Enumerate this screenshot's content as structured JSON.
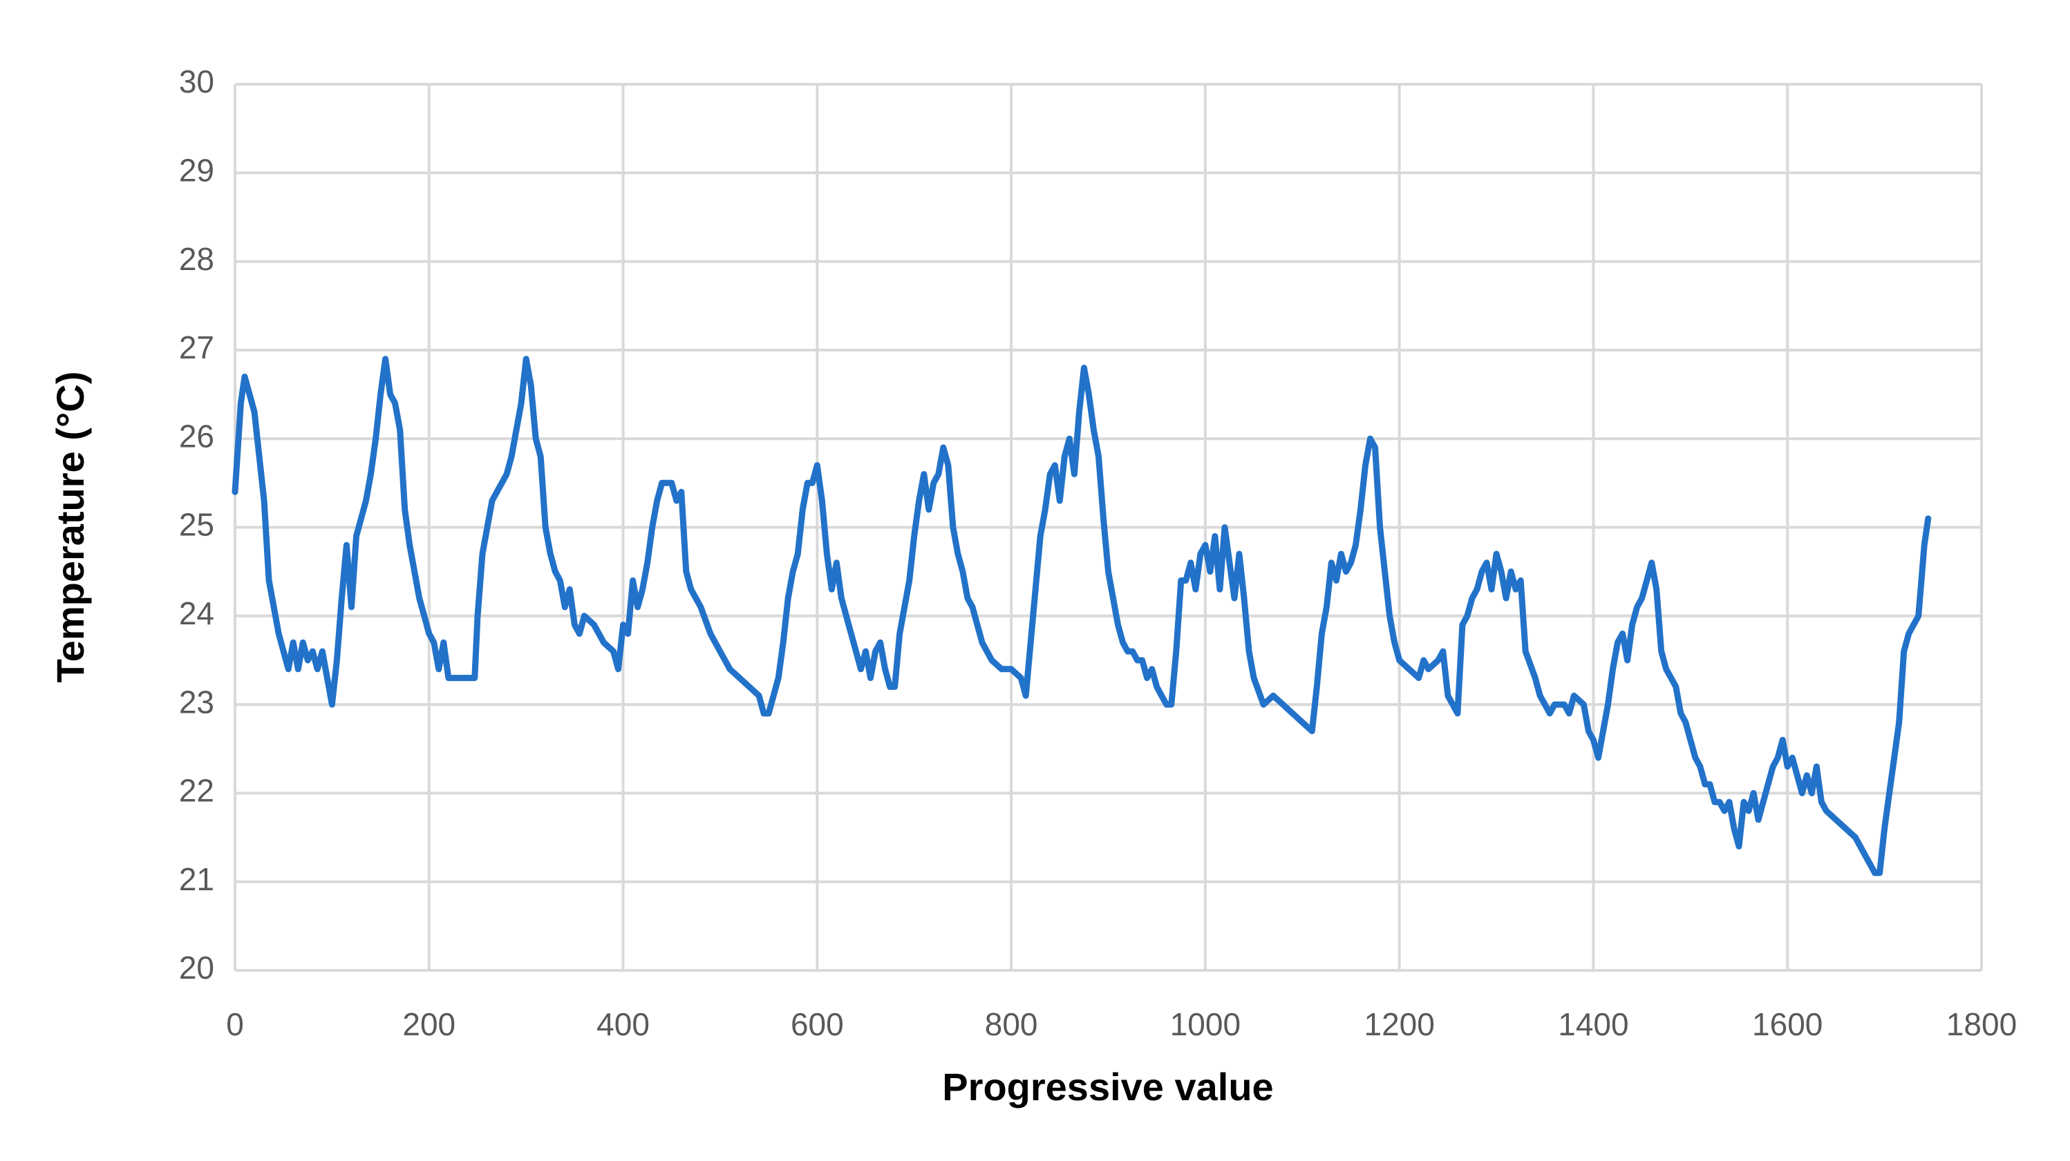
{
  "chart_data": {
    "type": "line",
    "x_label": "Progressive value",
    "y_label": "Temperature (°C)",
    "color": "#2272c9",
    "grid": true,
    "xlim": [
      0,
      1800
    ],
    "xticks": [
      0,
      200,
      400,
      600,
      800,
      1000,
      1200,
      1400,
      1600,
      1800
    ],
    "ylim": [
      20,
      30
    ],
    "yticks": [
      20,
      21,
      22,
      23,
      24,
      25,
      26,
      27,
      28,
      29,
      30
    ],
    "x": [
      0,
      3,
      6,
      10,
      15,
      20,
      25,
      30,
      35,
      40,
      45,
      50,
      55,
      60,
      65,
      70,
      75,
      80,
      85,
      90,
      95,
      100,
      105,
      110,
      115,
      120,
      125,
      130,
      135,
      140,
      145,
      150,
      155,
      160,
      165,
      170,
      175,
      180,
      185,
      190,
      195,
      200,
      205,
      210,
      215,
      220,
      230,
      240,
      247,
      250,
      255,
      260,
      265,
      270,
      275,
      280,
      285,
      290,
      295,
      300,
      305,
      310,
      315,
      320,
      325,
      330,
      335,
      340,
      345,
      350,
      355,
      360,
      370,
      380,
      390,
      395,
      400,
      405,
      410,
      415,
      420,
      425,
      430,
      435,
      440,
      445,
      450,
      455,
      460,
      465,
      470,
      480,
      490,
      500,
      510,
      520,
      530,
      540,
      545,
      550,
      555,
      560,
      565,
      570,
      575,
      580,
      585,
      590,
      595,
      600,
      605,
      610,
      615,
      620,
      625,
      630,
      640,
      645,
      650,
      655,
      660,
      665,
      670,
      675,
      680,
      685,
      690,
      695,
      700,
      705,
      710,
      715,
      720,
      725,
      730,
      735,
      740,
      745,
      750,
      755,
      760,
      765,
      770,
      780,
      790,
      800,
      810,
      815,
      820,
      825,
      830,
      835,
      840,
      845,
      850,
      855,
      860,
      865,
      870,
      875,
      880,
      885,
      890,
      895,
      900,
      905,
      910,
      915,
      920,
      925,
      930,
      935,
      940,
      945,
      950,
      955,
      960,
      965,
      970,
      975,
      980,
      985,
      990,
      995,
      1000,
      1005,
      1010,
      1015,
      1020,
      1025,
      1030,
      1035,
      1040,
      1045,
      1050,
      1060,
      1070,
      1080,
      1090,
      1100,
      1110,
      1115,
      1120,
      1125,
      1130,
      1135,
      1140,
      1145,
      1150,
      1155,
      1160,
      1165,
      1170,
      1175,
      1180,
      1185,
      1190,
      1195,
      1200,
      1210,
      1220,
      1225,
      1230,
      1240,
      1245,
      1250,
      1255,
      1260,
      1265,
      1270,
      1275,
      1280,
      1285,
      1290,
      1295,
      1300,
      1305,
      1310,
      1315,
      1320,
      1325,
      1330,
      1340,
      1345,
      1350,
      1355,
      1360,
      1370,
      1375,
      1380,
      1390,
      1395,
      1400,
      1405,
      1410,
      1415,
      1420,
      1425,
      1430,
      1435,
      1440,
      1445,
      1450,
      1455,
      1460,
      1465,
      1470,
      1475,
      1480,
      1485,
      1490,
      1495,
      1500,
      1505,
      1510,
      1515,
      1520,
      1525,
      1530,
      1535,
      1540,
      1545,
      1550,
      1555,
      1560,
      1565,
      1570,
      1575,
      1580,
      1585,
      1590,
      1595,
      1600,
      1605,
      1610,
      1615,
      1620,
      1625,
      1630,
      1635,
      1640,
      1650,
      1660,
      1670,
      1675,
      1680,
      1685,
      1690,
      1695,
      1700,
      1705,
      1710,
      1715,
      1720,
      1725,
      1730,
      1735,
      1738,
      1741,
      1745
    ],
    "values": [
      25.4,
      25.9,
      26.4,
      26.7,
      26.5,
      26.3,
      25.8,
      25.3,
      24.4,
      24.1,
      23.8,
      23.6,
      23.4,
      23.7,
      23.4,
      23.7,
      23.5,
      23.6,
      23.4,
      23.6,
      23.3,
      23.0,
      23.5,
      24.2,
      24.8,
      24.1,
      24.9,
      25.1,
      25.3,
      25.6,
      26.0,
      26.5,
      26.9,
      26.5,
      26.4,
      26.1,
      25.2,
      24.8,
      24.5,
      24.2,
      24.0,
      23.8,
      23.7,
      23.4,
      23.7,
      23.3,
      23.3,
      23.3,
      23.3,
      24.0,
      24.7,
      25.0,
      25.3,
      25.4,
      25.5,
      25.6,
      25.8,
      26.1,
      26.4,
      26.9,
      26.6,
      26.0,
      25.8,
      25.0,
      24.7,
      24.5,
      24.4,
      24.1,
      24.3,
      23.9,
      23.8,
      24.0,
      23.9,
      23.7,
      23.6,
      23.4,
      23.9,
      23.8,
      24.4,
      24.1,
      24.3,
      24.6,
      25.0,
      25.3,
      25.5,
      25.5,
      25.5,
      25.3,
      25.4,
      24.5,
      24.3,
      24.1,
      23.8,
      23.6,
      23.4,
      23.3,
      23.2,
      23.1,
      22.9,
      22.9,
      23.1,
      23.3,
      23.7,
      24.2,
      24.5,
      24.7,
      25.2,
      25.5,
      25.5,
      25.7,
      25.3,
      24.7,
      24.3,
      24.6,
      24.2,
      24.0,
      23.6,
      23.4,
      23.6,
      23.3,
      23.6,
      23.7,
      23.4,
      23.2,
      23.2,
      23.8,
      24.1,
      24.4,
      24.9,
      25.3,
      25.6,
      25.2,
      25.5,
      25.6,
      25.9,
      25.7,
      25.0,
      24.7,
      24.5,
      24.2,
      24.1,
      23.9,
      23.7,
      23.5,
      23.4,
      23.4,
      23.3,
      23.1,
      23.7,
      24.3,
      24.9,
      25.2,
      25.6,
      25.7,
      25.3,
      25.8,
      26.0,
      25.6,
      26.3,
      26.8,
      26.5,
      26.1,
      25.8,
      25.1,
      24.5,
      24.2,
      23.9,
      23.7,
      23.6,
      23.6,
      23.5,
      23.5,
      23.3,
      23.4,
      23.2,
      23.1,
      23.0,
      23.0,
      23.6,
      24.4,
      24.4,
      24.6,
      24.3,
      24.7,
      24.8,
      24.5,
      24.9,
      24.3,
      25.0,
      24.6,
      24.2,
      24.7,
      24.2,
      23.6,
      23.3,
      23.0,
      23.1,
      23.0,
      22.9,
      22.8,
      22.7,
      23.2,
      23.8,
      24.1,
      24.6,
      24.4,
      24.7,
      24.5,
      24.6,
      24.8,
      25.2,
      25.7,
      26.0,
      25.9,
      25.0,
      24.5,
      24.0,
      23.7,
      23.5,
      23.4,
      23.3,
      23.5,
      23.4,
      23.5,
      23.6,
      23.1,
      23.0,
      22.9,
      23.9,
      24.0,
      24.2,
      24.3,
      24.5,
      24.6,
      24.3,
      24.7,
      24.5,
      24.2,
      24.5,
      24.3,
      24.4,
      23.6,
      23.3,
      23.1,
      23.0,
      22.9,
      23.0,
      23.0,
      22.9,
      23.1,
      23.0,
      22.7,
      22.6,
      22.4,
      22.7,
      23.0,
      23.4,
      23.7,
      23.8,
      23.5,
      23.9,
      24.1,
      24.2,
      24.4,
      24.6,
      24.3,
      23.6,
      23.4,
      23.3,
      23.2,
      22.9,
      22.8,
      22.6,
      22.4,
      22.3,
      22.1,
      22.1,
      21.9,
      21.9,
      21.8,
      21.9,
      21.6,
      21.4,
      21.9,
      21.8,
      22.0,
      21.7,
      21.9,
      22.1,
      22.3,
      22.4,
      22.6,
      22.3,
      22.4,
      22.2,
      22.0,
      22.2,
      22.0,
      22.3,
      21.9,
      21.8,
      21.7,
      21.6,
      21.5,
      21.4,
      21.3,
      21.2,
      21.1,
      21.1,
      21.6,
      22.0,
      22.4,
      22.8,
      23.6,
      23.8,
      23.9,
      24.0,
      24.4,
      24.8,
      25.1
    ]
  }
}
